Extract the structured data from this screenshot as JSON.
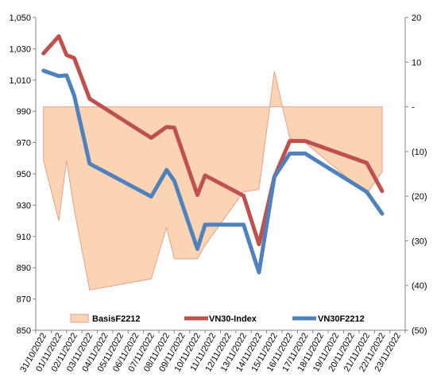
{
  "chart_data": {
    "type": "line",
    "title": "",
    "categories": [
      "31/10/2022",
      "01/11/2022",
      "02/11/2022",
      "03/11/2022",
      "04/11/2022",
      "05/11/2022",
      "06/11/2022",
      "07/11/2022",
      "08/11/2022",
      "09/11/2022",
      "10/11/2022",
      "11/11/2022",
      "12/11/2022",
      "13/11/2022",
      "14/11/2022",
      "15/11/2022",
      "16/11/2022",
      "17/11/2022",
      "18/11/2022",
      "19/11/2022",
      "20/11/2022",
      "21/11/2022",
      "22/11/2022",
      "23/11/2022"
    ],
    "points": [
      {
        "x": "31/10/2022",
        "basis": -12,
        "vn30": 1027,
        "vn30f": 1016
      },
      {
        "x": "01/11/2022",
        "basis": -25.5,
        "vn30": 1038,
        "vn30f": 1012.5
      },
      {
        "x": "01/11/2022",
        "basis": -12,
        "vn30": 1026,
        "vn30f": 1013
      },
      {
        "x": "02/11/2022",
        "basis": -23,
        "vn30": 1024,
        "vn30f": 1000
      },
      {
        "x": "03/11/2022",
        "basis": -41,
        "vn30": 998,
        "vn30f": 956.5
      },
      {
        "x": "07/11/2022",
        "basis": -38.5,
        "vn30": 973,
        "vn30f": 935.5
      },
      {
        "x": "08/11/2022",
        "basis": -27,
        "vn30": 980,
        "vn30f": 952.5
      },
      {
        "x": "08/11/2022",
        "basis": -34,
        "vn30": 979.5,
        "vn30f": 945.5
      },
      {
        "x": "10/11/2022",
        "basis": -34,
        "vn30": 936.5,
        "vn30f": 902
      },
      {
        "x": "10/11/2022",
        "basis": -31,
        "vn30": 949,
        "vn30f": 917.5
      },
      {
        "x": "13/11/2022",
        "basis": -19,
        "vn30": 936,
        "vn30f": 917.5
      },
      {
        "x": "14/11/2022",
        "basis": -18.5,
        "vn30": 905,
        "vn30f": 887
      },
      {
        "x": "15/11/2022",
        "basis": 8,
        "vn30": 948,
        "vn30f": 948
      },
      {
        "x": "16/11/2022",
        "basis": -7,
        "vn30": 971,
        "vn30f": 963
      },
      {
        "x": "17/11/2022",
        "basis": -8,
        "vn30": 971,
        "vn30f": 963
      },
      {
        "x": "21/11/2022",
        "basis": -19.5,
        "vn30": 957,
        "vn30f": 938.5
      },
      {
        "x": "22/11/2022",
        "basis": -14.5,
        "vn30": 939,
        "vn30f": 924.5
      }
    ],
    "series": [
      {
        "name": "BasisF2212",
        "kind": "area",
        "axis": "right",
        "color": "#fbd4b4",
        "stroke": "#e6a08b"
      },
      {
        "name": "VN30-Index",
        "kind": "line",
        "axis": "left",
        "color": "#c0504d"
      },
      {
        "name": "VN30F2212",
        "kind": "line",
        "axis": "left",
        "color": "#4f81bd"
      }
    ],
    "y_left": {
      "min": 850,
      "max": 1050,
      "ticks": [
        "1,050",
        "1,030",
        "1,010",
        "990",
        "970",
        "950",
        "930",
        "910",
        "890",
        "870",
        "850"
      ]
    },
    "y_right": {
      "min": -50,
      "max": 20,
      "ticks": [
        "20",
        "10",
        "-",
        "(10)",
        "(20)",
        "(30)",
        "(40)",
        "(50)"
      ]
    },
    "legend_position": "bottom-inside",
    "grid": false
  }
}
